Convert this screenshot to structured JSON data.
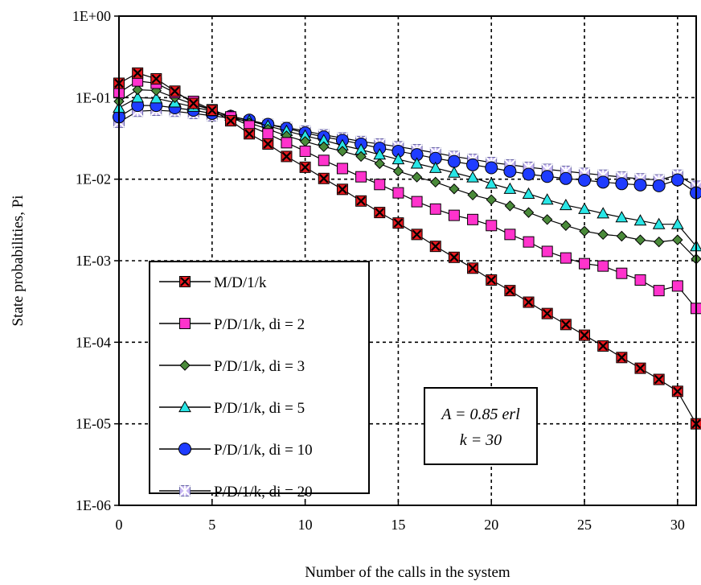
{
  "chart_data": {
    "type": "line",
    "title": "",
    "xlabel": "Number of the calls in the system",
    "ylabel": "State probabilities, Pi",
    "xlim": [
      0,
      31
    ],
    "ylim": [
      1e-06,
      1
    ],
    "yscale": "log",
    "grid": true,
    "x_ticks": [
      0,
      5,
      10,
      15,
      20,
      25,
      30
    ],
    "y_ticks": [
      {
        "value": 1,
        "label": "1E+00"
      },
      {
        "value": 0.1,
        "label": "1E-01"
      },
      {
        "value": 0.01,
        "label": "1E-02"
      },
      {
        "value": 0.001,
        "label": "1E-03"
      },
      {
        "value": 0.0001,
        "label": "1E-04"
      },
      {
        "value": 1e-05,
        "label": "1E-05"
      },
      {
        "value": 1e-06,
        "label": "1E-06"
      }
    ],
    "legend_position": "bottom-left",
    "annotations": [
      "A = 0.85 erl",
      "k = 30"
    ],
    "x": [
      0,
      1,
      2,
      3,
      4,
      5,
      6,
      7,
      8,
      9,
      10,
      11,
      12,
      13,
      14,
      15,
      16,
      17,
      18,
      19,
      20,
      21,
      22,
      23,
      24,
      25,
      26,
      27,
      28,
      29,
      30,
      31
    ],
    "series": [
      {
        "name": "M/D/1/k",
        "color": "#e8191f",
        "marker": "x-square",
        "values": [
          0.15,
          0.2,
          0.17,
          0.12,
          0.085,
          0.07,
          0.052,
          0.036,
          0.027,
          0.019,
          0.014,
          0.0102,
          0.0075,
          0.0054,
          0.0039,
          0.0029,
          0.0021,
          0.0015,
          0.0011,
          0.00081,
          0.00058,
          0.00043,
          0.00031,
          0.000225,
          0.000165,
          0.000122,
          9e-05,
          6.5e-05,
          4.8e-05,
          3.5e-05,
          2.5e-05,
          1e-05
        ]
      },
      {
        "name": "P/D/1/k, di = 2",
        "color": "#ff33cc",
        "marker": "square",
        "values": [
          0.115,
          0.16,
          0.15,
          0.115,
          0.09,
          0.071,
          0.058,
          0.045,
          0.036,
          0.028,
          0.022,
          0.017,
          0.0135,
          0.0107,
          0.0086,
          0.0068,
          0.0053,
          0.0043,
          0.0036,
          0.0032,
          0.0027,
          0.0021,
          0.0017,
          0.0013,
          0.00108,
          0.00092,
          0.00086,
          0.0007,
          0.00058,
          0.00043,
          0.00049,
          0.00026
        ]
      },
      {
        "name": "P/D/1/k, di = 3",
        "color": "#4a8a3a",
        "marker": "diamond",
        "values": [
          0.09,
          0.125,
          0.122,
          0.1,
          0.083,
          0.07,
          0.059,
          0.049,
          0.041,
          0.034,
          0.029,
          0.025,
          0.022,
          0.019,
          0.0155,
          0.0125,
          0.0106,
          0.0092,
          0.0076,
          0.0064,
          0.0056,
          0.0047,
          0.0039,
          0.0032,
          0.0027,
          0.0023,
          0.0021,
          0.002,
          0.0018,
          0.0017,
          0.0018,
          0.00105
        ]
      },
      {
        "name": "P/D/1/k, di = 5",
        "color": "#29e6e6",
        "marker": "triangle",
        "values": [
          0.075,
          0.1,
          0.098,
          0.087,
          0.077,
          0.068,
          0.06,
          0.052,
          0.045,
          0.039,
          0.034,
          0.03,
          0.026,
          0.023,
          0.02,
          0.0175,
          0.0155,
          0.0137,
          0.012,
          0.0105,
          0.0088,
          0.0076,
          0.0066,
          0.0056,
          0.0048,
          0.0043,
          0.0038,
          0.0034,
          0.0031,
          0.0028,
          0.0028,
          0.0015
        ]
      },
      {
        "name": "P/D/1/k, di = 10",
        "color": "#1f3cff",
        "marker": "circle",
        "values": [
          0.058,
          0.08,
          0.08,
          0.075,
          0.07,
          0.064,
          0.059,
          0.053,
          0.047,
          0.042,
          0.037,
          0.033,
          0.03,
          0.027,
          0.024,
          0.022,
          0.02,
          0.018,
          0.0165,
          0.015,
          0.0138,
          0.0125,
          0.0115,
          0.0108,
          0.0102,
          0.0097,
          0.0092,
          0.0088,
          0.0085,
          0.0083,
          0.0098,
          0.0068
        ]
      },
      {
        "name": "P/D/1/k, di = 20",
        "color": "#c9b8f2",
        "marker": "star",
        "values": [
          0.05,
          0.068,
          0.07,
          0.068,
          0.064,
          0.06,
          0.056,
          0.051,
          0.047,
          0.043,
          0.039,
          0.035,
          0.032,
          0.029,
          0.027,
          0.025,
          0.023,
          0.021,
          0.019,
          0.0175,
          0.016,
          0.015,
          0.014,
          0.0132,
          0.0125,
          0.0118,
          0.0112,
          0.0106,
          0.0101,
          0.0098,
          0.0112,
          0.0082
        ]
      }
    ]
  }
}
